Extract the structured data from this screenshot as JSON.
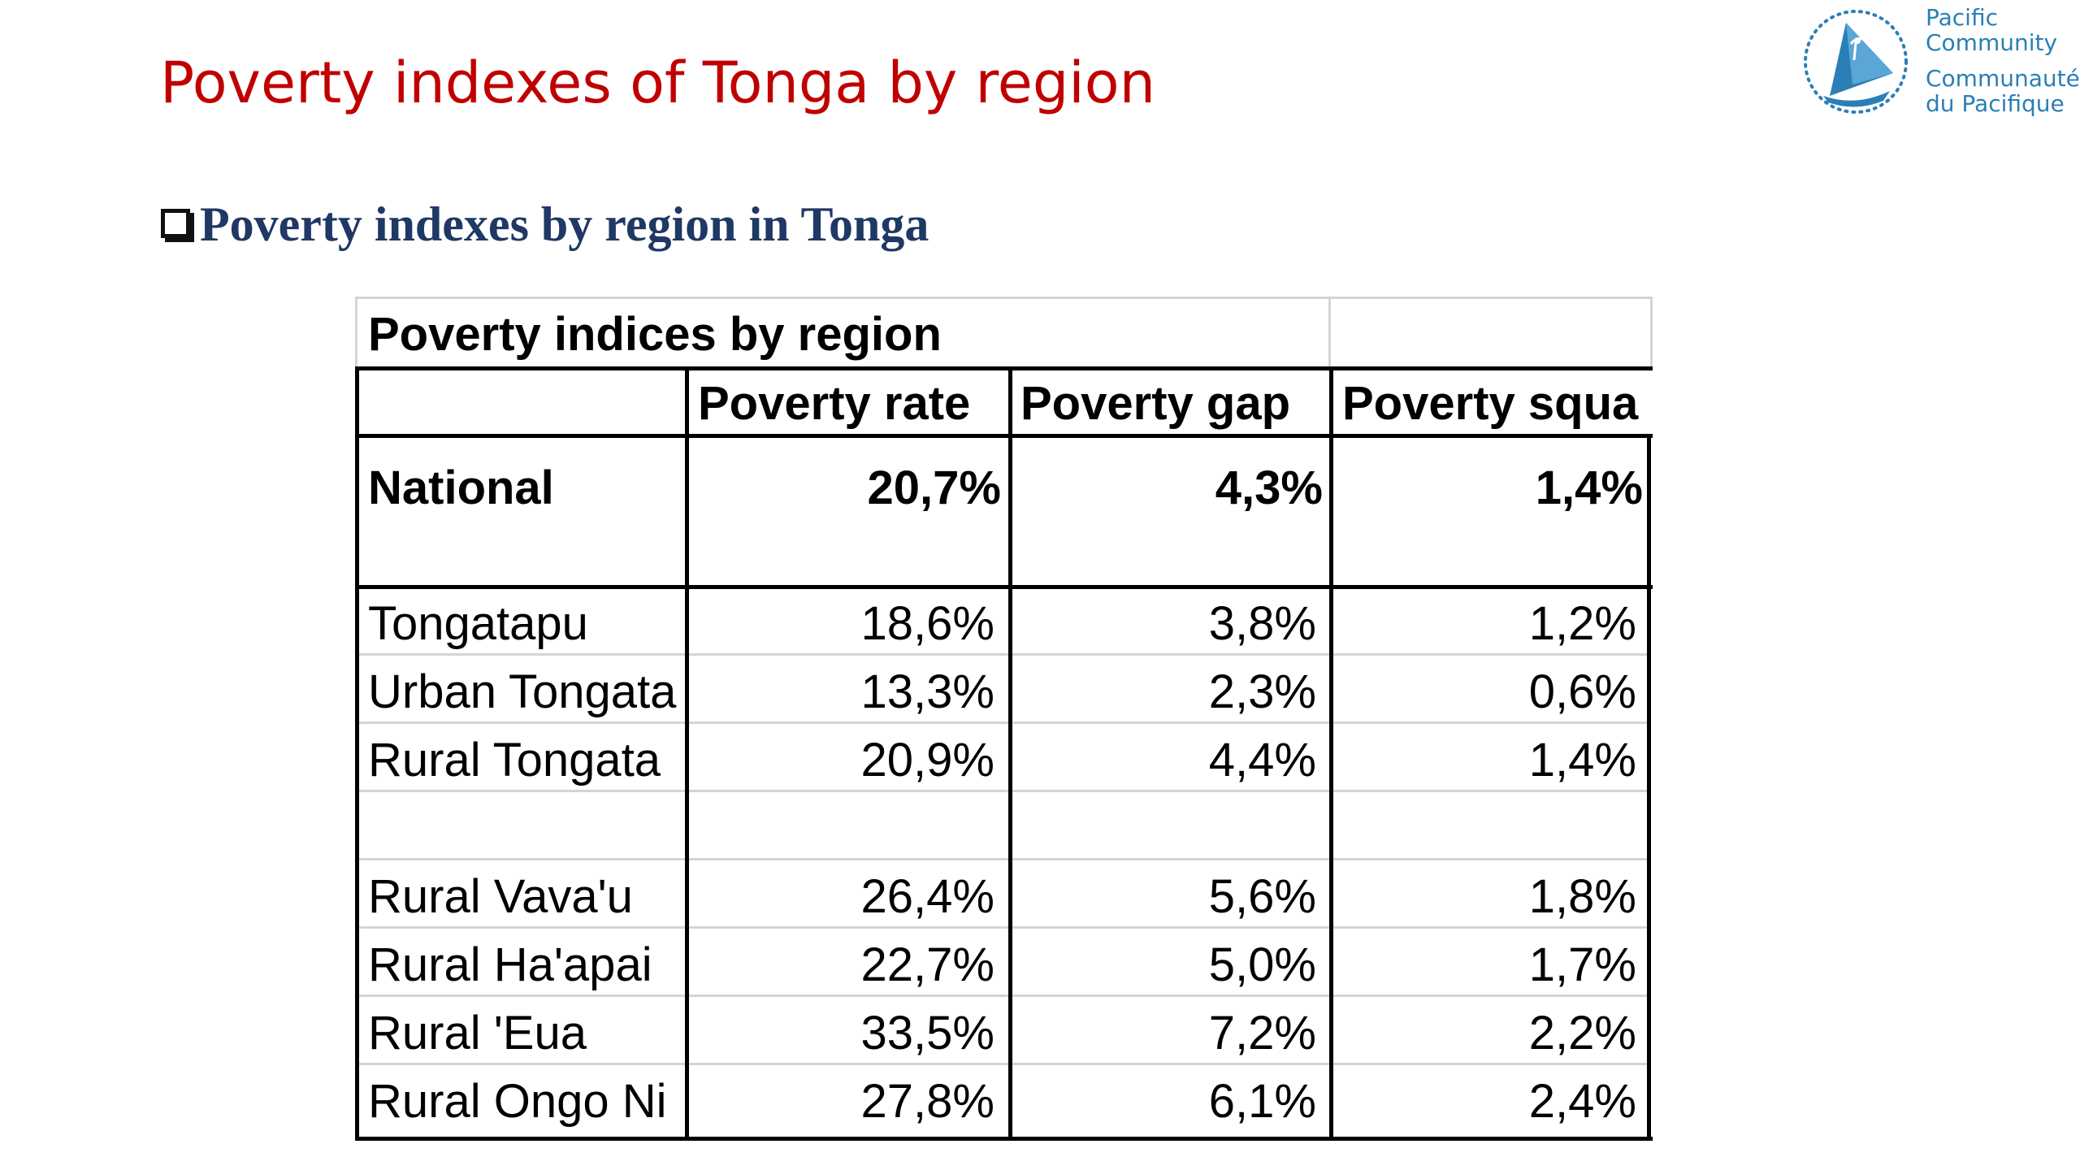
{
  "slide": {
    "title": "Poverty indexes of Tonga by region",
    "bullet_heading": "Poverty indexes by region in Tonga"
  },
  "logo": {
    "line1": "Pacific",
    "line2": "Community",
    "line3": "Communauté",
    "line4": "du Pacifique",
    "icon": "spc-sail-logo-icon",
    "color": "#2b7fb6"
  },
  "table": {
    "caption": "Poverty indices by region",
    "headers": [
      "",
      "Poverty rate",
      "Poverty gap",
      "Poverty squa"
    ],
    "national": {
      "label": "National",
      "rate": "20,7%",
      "gap": "4,3%",
      "squared": "1,4%"
    },
    "rows": [
      {
        "label": "Tongatapu",
        "rate": "18,6%",
        "gap": "3,8%",
        "squared": "1,2%"
      },
      {
        "label": "Urban Tongata",
        "rate": "13,3%",
        "gap": "2,3%",
        "squared": "0,6%"
      },
      {
        "label": "Rural Tongata",
        "rate": "20,9%",
        "gap": "4,4%",
        "squared": "1,4%"
      },
      {
        "label": "Rural Vava'u",
        "rate": "26,4%",
        "gap": "5,6%",
        "squared": "1,8%"
      },
      {
        "label": "Rural Ha'apai",
        "rate": "22,7%",
        "gap": "5,0%",
        "squared": "1,7%"
      },
      {
        "label": "Rural 'Eua",
        "rate": "33,5%",
        "gap": "7,2%",
        "squared": "2,2%"
      },
      {
        "label": "Rural Ongo Ni",
        "rate": "27,8%",
        "gap": "6,1%",
        "squared": "2,4%"
      }
    ]
  },
  "colors": {
    "title": "#c00000",
    "heading": "#1f3864"
  }
}
